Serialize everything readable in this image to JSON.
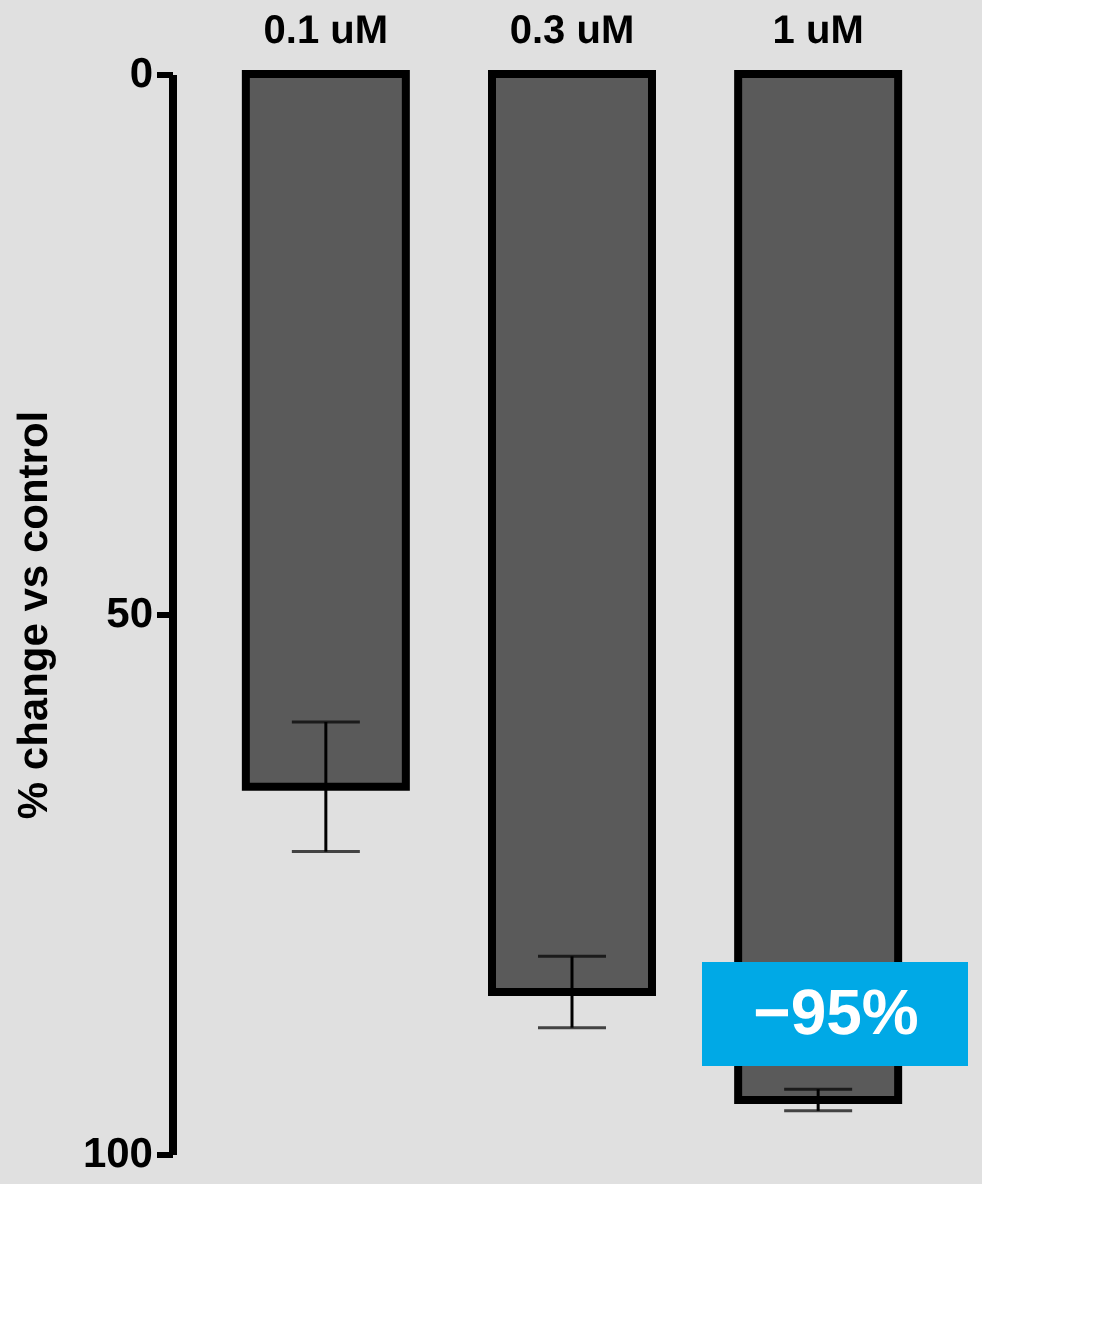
{
  "chart_data": {
    "type": "bar",
    "ylabel": "% change vs control",
    "categories": [
      "0.1 uM",
      "0.3 uM",
      "1 uM"
    ],
    "values": [
      66,
      85,
      95
    ],
    "errors": [
      6,
      3.3,
      1
    ],
    "color": "#5a5a5a",
    "ylim": [
      100,
      0
    ],
    "yticks": [
      0,
      50,
      100
    ],
    "annotations": [
      "−95%"
    ]
  }
}
